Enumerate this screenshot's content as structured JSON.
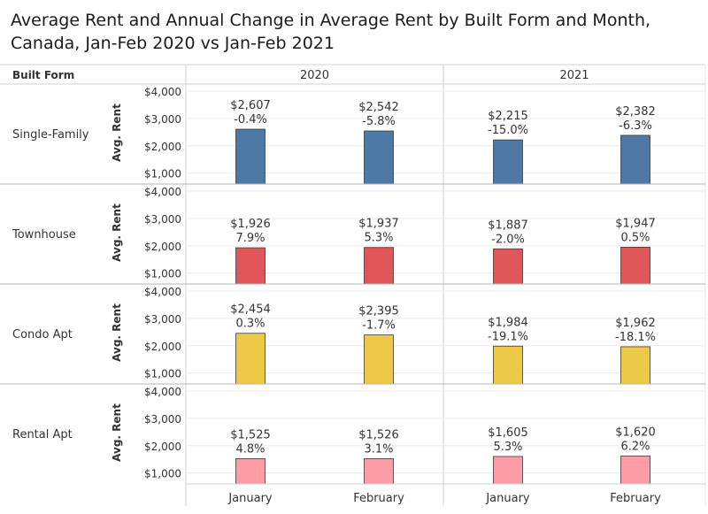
{
  "title": "Average Rent and Annual Change in Average Rent by Built Form and Month, Canada, Jan-Feb 2020 vs Jan-Feb 2021",
  "chart_data": {
    "type": "bar",
    "title": "Average Rent and Annual Change in Average Rent by Built Form and Month, Canada, Jan-Feb 2020 vs Jan-Feb 2021",
    "row_header": "Built Form",
    "ylabel": "Avg. Rent",
    "ylim": [
      600,
      4000
    ],
    "yticks": [
      1000,
      2000,
      3000,
      4000
    ],
    "ytick_labels": [
      "$1,000",
      "$2,000",
      "$3,000",
      "$4,000"
    ],
    "years": [
      "2020",
      "2021"
    ],
    "months": [
      "January",
      "February"
    ],
    "rows": [
      {
        "name": "Single-Family",
        "color": "#4e79a7",
        "values": [
          2607,
          2542,
          2215,
          2382
        ],
        "value_labels": [
          "$2,607",
          "$2,542",
          "$2,215",
          "$2,382"
        ],
        "change_labels": [
          "-0.4%",
          "-5.8%",
          "-15.0%",
          "-6.3%"
        ]
      },
      {
        "name": "Townhouse",
        "color": "#e15759",
        "values": [
          1926,
          1937,
          1887,
          1947
        ],
        "value_labels": [
          "$1,926",
          "$1,937",
          "$1,887",
          "$1,947"
        ],
        "change_labels": [
          "7.9%",
          "5.3%",
          "-2.0%",
          "0.5%"
        ]
      },
      {
        "name": "Condo Apt",
        "color": "#edc948",
        "values": [
          2454,
          2395,
          1984,
          1962
        ],
        "value_labels": [
          "$2,454",
          "$2,395",
          "$1,984",
          "$1,962"
        ],
        "change_labels": [
          "0.3%",
          "-1.7%",
          "-19.1%",
          "-18.1%"
        ]
      },
      {
        "name": "Rental Apt",
        "color": "#ff9da7",
        "values": [
          1525,
          1526,
          1605,
          1620
        ],
        "value_labels": [
          "$1,525",
          "$1,526",
          "$1,605",
          "$1,620"
        ],
        "change_labels": [
          "4.8%",
          "3.1%",
          "5.3%",
          "6.2%"
        ]
      }
    ]
  }
}
